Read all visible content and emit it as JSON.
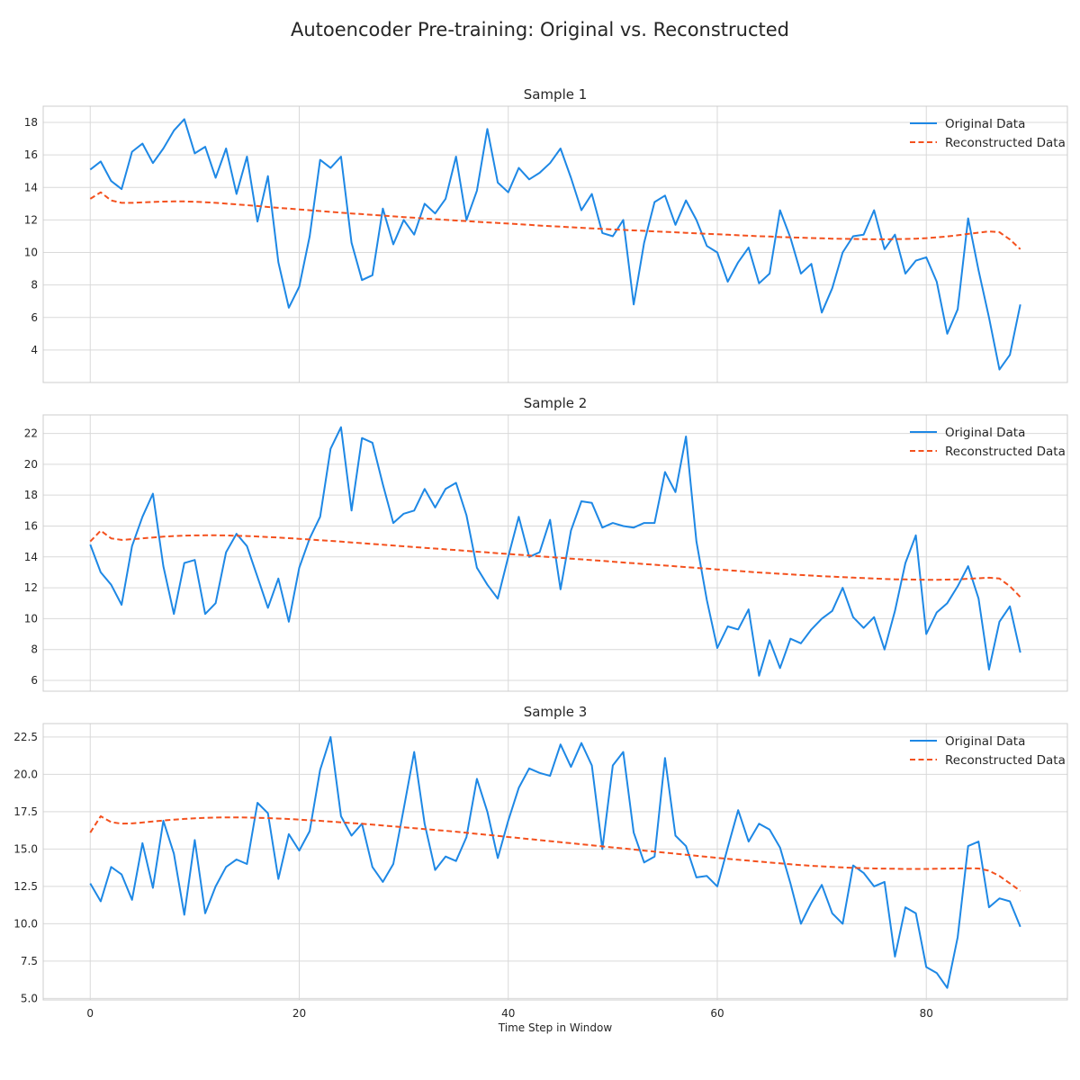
{
  "figure": {
    "title": "Autoencoder Pre-training: Original vs. Reconstructed",
    "xlabel": "Time Step in Window"
  },
  "colors": {
    "original": "#1e88e5",
    "reconstructed": "#f4511e",
    "grid": "#d9d9d9",
    "spine": "#cccccc",
    "text": "#262626"
  },
  "chart_data": [
    {
      "type": "line",
      "title": "Sample 1",
      "xlabel": "",
      "ylabel": "",
      "xlim": [
        -4.5,
        93.5
      ],
      "ylim": [
        2.0,
        19.0
      ],
      "xticks": [
        0,
        20,
        40,
        60,
        80
      ],
      "yticks": [
        4,
        6,
        8,
        10,
        12,
        14,
        16,
        18
      ],
      "ytick_labels": [
        "4",
        "6",
        "8",
        "10",
        "12",
        "14",
        "16",
        "18"
      ],
      "show_xtick_labels": false,
      "grid": true,
      "legend": "top-right",
      "series": [
        {
          "name": "Original Data",
          "style": "solid",
          "values": [
            15.1,
            15.6,
            14.4,
            13.9,
            16.2,
            16.7,
            15.5,
            16.4,
            17.5,
            18.2,
            16.1,
            16.5,
            14.6,
            16.4,
            13.6,
            15.9,
            11.9,
            14.7,
            9.4,
            6.6,
            7.9,
            11.0,
            15.7,
            15.2,
            15.9,
            10.6,
            8.3,
            8.6,
            12.7,
            10.5,
            12.0,
            11.1,
            13.0,
            12.4,
            13.3,
            15.9,
            12.0,
            13.8,
            17.6,
            14.3,
            13.7,
            15.2,
            14.5,
            14.9,
            15.5,
            16.4,
            14.6,
            12.6,
            13.6,
            11.2,
            11.0,
            12.0,
            6.8,
            10.6,
            13.1,
            13.5,
            11.7,
            13.2,
            12.0,
            10.4,
            10.0,
            8.2,
            9.4,
            10.3,
            8.1,
            8.7,
            12.6,
            10.9,
            8.7,
            9.3,
            6.3,
            7.8,
            10.0,
            11.0,
            11.1,
            12.6,
            10.2,
            11.1,
            8.7,
            9.5,
            9.7,
            8.2,
            5.0,
            6.5,
            12.1,
            8.9,
            6.0,
            2.8,
            3.7,
            6.8
          ]
        },
        {
          "name": "Reconstructed Data",
          "style": "dashed",
          "values": [
            13.3,
            13.7,
            13.2,
            13.05,
            13.05,
            13.08,
            13.11,
            13.13,
            13.14,
            13.14,
            13.12,
            13.09,
            13.05,
            13.01,
            12.96,
            12.91,
            12.86,
            12.8,
            12.75,
            12.7,
            12.65,
            12.6,
            12.55,
            12.5,
            12.45,
            12.4,
            12.36,
            12.31,
            12.27,
            12.22,
            12.18,
            12.14,
            12.09,
            12.05,
            12.01,
            11.97,
            11.93,
            11.89,
            11.85,
            11.82,
            11.78,
            11.74,
            11.7,
            11.66,
            11.62,
            11.59,
            11.55,
            11.52,
            11.48,
            11.45,
            11.42,
            11.39,
            11.36,
            11.33,
            11.3,
            11.27,
            11.24,
            11.21,
            11.18,
            11.15,
            11.12,
            11.09,
            11.06,
            11.03,
            11.0,
            10.98,
            10.95,
            10.93,
            10.91,
            10.89,
            10.87,
            10.85,
            10.84,
            10.83,
            10.82,
            10.81,
            10.81,
            10.82,
            10.83,
            10.85,
            10.88,
            10.93,
            10.99,
            11.06,
            11.14,
            11.22,
            11.3,
            11.25,
            10.8,
            10.2
          ]
        }
      ]
    },
    {
      "type": "line",
      "title": "Sample 2",
      "xlabel": "",
      "ylabel": "",
      "xlim": [
        -4.5,
        93.5
      ],
      "ylim": [
        5.3,
        23.2
      ],
      "xticks": [
        0,
        20,
        40,
        60,
        80
      ],
      "yticks": [
        6,
        8,
        10,
        12,
        14,
        16,
        18,
        20,
        22
      ],
      "ytick_labels": [
        "6",
        "8",
        "10",
        "12",
        "14",
        "16",
        "18",
        "20",
        "22"
      ],
      "show_xtick_labels": false,
      "grid": true,
      "legend": "top-right",
      "series": [
        {
          "name": "Original Data",
          "style": "solid",
          "values": [
            14.8,
            13.0,
            12.2,
            10.9,
            14.7,
            16.6,
            18.1,
            13.4,
            10.3,
            13.6,
            13.8,
            10.3,
            11.0,
            14.3,
            15.5,
            14.7,
            12.7,
            10.7,
            12.6,
            9.8,
            13.3,
            15.2,
            16.6,
            21.0,
            22.4,
            17.0,
            21.7,
            21.4,
            18.7,
            16.2,
            16.8,
            17.0,
            18.4,
            17.2,
            18.4,
            18.8,
            16.7,
            13.3,
            12.2,
            11.3,
            14.0,
            16.6,
            14.0,
            14.3,
            16.4,
            11.9,
            15.7,
            17.6,
            17.5,
            15.9,
            16.2,
            16.0,
            15.9,
            16.2,
            16.2,
            19.5,
            18.2,
            21.8,
            15.0,
            11.2,
            8.1,
            9.5,
            9.3,
            10.6,
            6.3,
            8.6,
            6.8,
            8.7,
            8.4,
            9.3,
            10.0,
            10.5,
            12.0,
            10.1,
            9.4,
            10.1,
            8.0,
            10.5,
            13.6,
            15.4,
            9.0,
            10.4,
            11.0,
            12.1,
            13.4,
            11.3,
            6.7,
            9.8,
            10.8,
            7.8
          ]
        },
        {
          "name": "Reconstructed Data",
          "style": "dashed",
          "values": [
            15.0,
            15.7,
            15.2,
            15.1,
            15.15,
            15.2,
            15.26,
            15.31,
            15.35,
            15.38,
            15.39,
            15.4,
            15.4,
            15.39,
            15.37,
            15.35,
            15.32,
            15.29,
            15.25,
            15.21,
            15.17,
            15.13,
            15.08,
            15.04,
            14.99,
            14.94,
            14.89,
            14.84,
            14.79,
            14.74,
            14.69,
            14.64,
            14.59,
            14.54,
            14.49,
            14.44,
            14.39,
            14.34,
            14.29,
            14.24,
            14.19,
            14.14,
            14.09,
            14.04,
            13.99,
            13.94,
            13.89,
            13.84,
            13.79,
            13.74,
            13.69,
            13.64,
            13.59,
            13.54,
            13.49,
            13.44,
            13.39,
            13.34,
            13.29,
            13.24,
            13.19,
            13.14,
            13.09,
            13.04,
            12.99,
            12.95,
            12.91,
            12.87,
            12.83,
            12.79,
            12.75,
            12.72,
            12.69,
            12.66,
            12.63,
            12.6,
            12.57,
            12.55,
            12.54,
            12.53,
            12.52,
            12.52,
            12.53,
            12.55,
            12.58,
            12.62,
            12.65,
            12.6,
            12.1,
            11.4
          ]
        }
      ]
    },
    {
      "type": "line",
      "title": "Sample 3",
      "xlabel": "Time Step in Window",
      "ylabel": "",
      "xlim": [
        -4.5,
        93.5
      ],
      "ylim": [
        4.9,
        23.4
      ],
      "xticks": [
        0,
        20,
        40,
        60,
        80
      ],
      "xtick_labels": [
        "0",
        "20",
        "40",
        "60",
        "80"
      ],
      "yticks": [
        5.0,
        7.5,
        10.0,
        12.5,
        15.0,
        17.5,
        20.0,
        22.5
      ],
      "ytick_labels": [
        "5.0",
        "7.5",
        "10.0",
        "12.5",
        "15.0",
        "17.5",
        "20.0",
        "22.5"
      ],
      "show_xtick_labels": true,
      "grid": true,
      "legend": "top-right",
      "series": [
        {
          "name": "Original Data",
          "style": "solid",
          "values": [
            12.7,
            11.5,
            13.8,
            13.3,
            11.6,
            15.4,
            12.4,
            16.9,
            14.7,
            10.6,
            15.6,
            10.7,
            12.5,
            13.8,
            14.3,
            14.0,
            18.1,
            17.4,
            13.0,
            16.0,
            14.9,
            16.2,
            20.3,
            22.5,
            17.2,
            15.9,
            16.7,
            13.8,
            12.8,
            14.0,
            17.7,
            21.5,
            16.7,
            13.6,
            14.5,
            14.2,
            15.8,
            19.7,
            17.5,
            14.4,
            16.9,
            19.1,
            20.4,
            20.1,
            19.9,
            22.0,
            20.5,
            22.1,
            20.6,
            15.0,
            20.6,
            21.5,
            16.1,
            14.1,
            14.5,
            21.1,
            15.9,
            15.2,
            13.1,
            13.2,
            12.5,
            15.1,
            17.6,
            15.5,
            16.7,
            16.3,
            15.1,
            12.7,
            10.0,
            11.4,
            12.6,
            10.7,
            10.0,
            13.9,
            13.4,
            12.5,
            12.8,
            7.8,
            11.1,
            10.7,
            7.1,
            6.7,
            5.7,
            9.1,
            15.2,
            15.5,
            11.1,
            11.7,
            11.5,
            9.8
          ]
        },
        {
          "name": "Reconstructed Data",
          "style": "dashed",
          "values": [
            16.1,
            17.2,
            16.8,
            16.7,
            16.72,
            16.78,
            16.85,
            16.91,
            16.97,
            17.02,
            17.06,
            17.09,
            17.11,
            17.12,
            17.12,
            17.11,
            17.09,
            17.07,
            17.04,
            17.01,
            16.97,
            16.93,
            16.89,
            16.84,
            16.79,
            16.74,
            16.69,
            16.64,
            16.58,
            16.52,
            16.46,
            16.4,
            16.34,
            16.28,
            16.22,
            16.16,
            16.09,
            16.02,
            15.95,
            15.88,
            15.81,
            15.74,
            15.67,
            15.6,
            15.53,
            15.46,
            15.39,
            15.32,
            15.25,
            15.18,
            15.11,
            15.04,
            14.97,
            14.9,
            14.83,
            14.76,
            14.69,
            14.62,
            14.55,
            14.48,
            14.41,
            14.34,
            14.28,
            14.22,
            14.16,
            14.1,
            14.04,
            13.98,
            13.93,
            13.88,
            13.84,
            13.8,
            13.77,
            13.74,
            13.72,
            13.7,
            13.69,
            13.68,
            13.67,
            13.67,
            13.67,
            13.68,
            13.69,
            13.7,
            13.71,
            13.7,
            13.55,
            13.2,
            12.7,
            12.2
          ]
        }
      ]
    }
  ]
}
